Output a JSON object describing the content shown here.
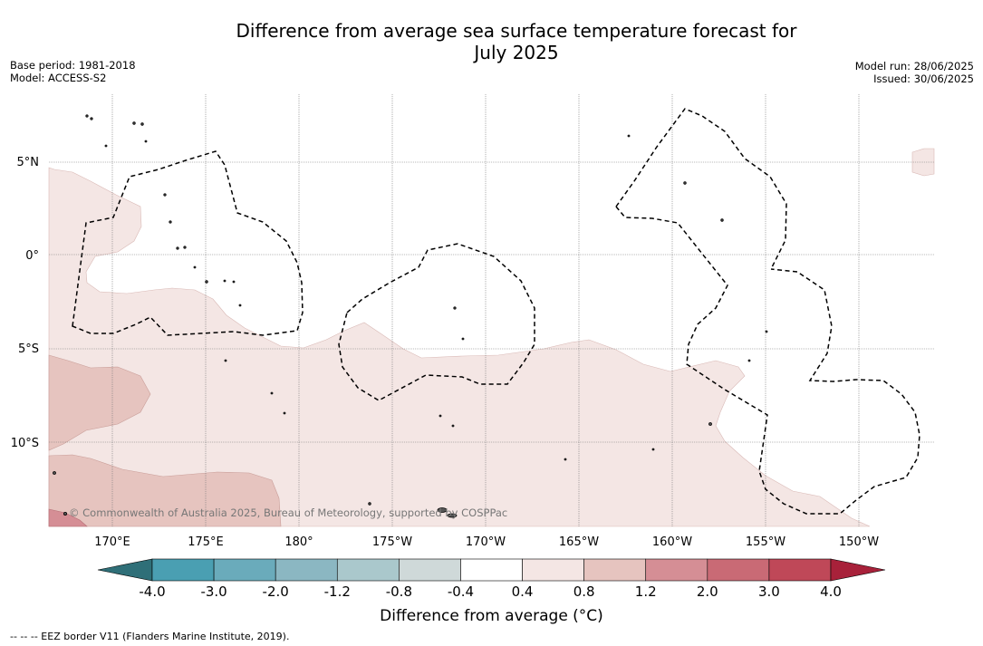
{
  "title": {
    "line1": "Difference from average sea surface temperature forecast for",
    "line2": "July 2025"
  },
  "meta_left": {
    "base_period": "Base period: 1981-2018",
    "model": "Model: ACCESS-S2"
  },
  "meta_right": {
    "model_run": "Model run: 28/06/2025",
    "issued": "Issued: 30/06/2025"
  },
  "map": {
    "lat_labels": [
      "5°N",
      "0°",
      "5°S",
      "10°S"
    ],
    "lon_labels": [
      "170°E",
      "175°E",
      "180°",
      "175°W",
      "170°W",
      "165°W",
      "160°W",
      "155°W",
      "150°W"
    ],
    "copyright": "© Commonwealth of Australia 2025, Bureau of Meteorology, supported by COSPPac"
  },
  "colorbar": {
    "tick_labels": [
      "-4.0",
      "-3.0",
      "-2.0",
      "-1.2",
      "-0.8",
      "-0.4",
      "0.4",
      "0.8",
      "1.2",
      "2.0",
      "3.0",
      "4.0"
    ],
    "colors": [
      "#2f6f78",
      "#4a9fb2",
      "#6aabbb",
      "#8bb7c2",
      "#aac8cc",
      "#cfd9d9",
      "#ffffff",
      "#f4e6e4",
      "#e6c4bf",
      "#d58e95",
      "#c96a75",
      "#bf4858",
      "#a8213a"
    ],
    "label": "Difference from average (°C)"
  },
  "footnote": "--  --  -- EEZ border V11 (Flanders Marine Institute, 2019)."
}
